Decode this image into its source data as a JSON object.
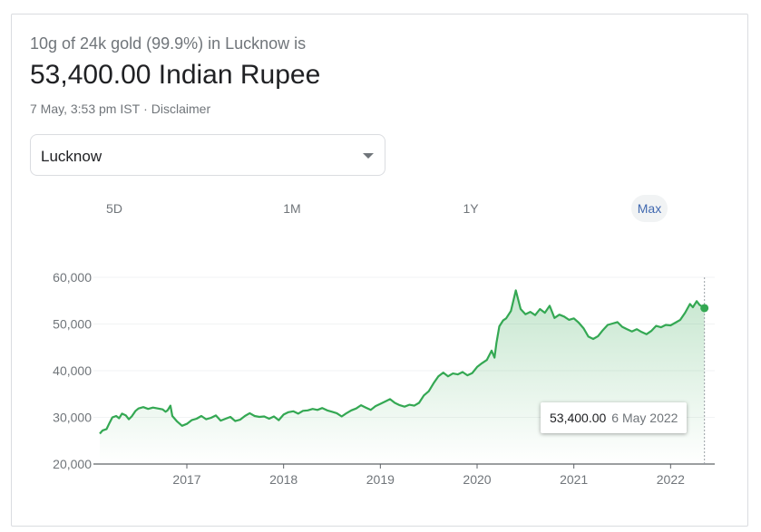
{
  "header": {
    "subtitle": "10g of 24k gold (99.9%) in Lucknow is",
    "price": "53,400.00 Indian Rupee",
    "timestamp": "7 May, 3:53 pm IST",
    "separator": "·",
    "disclaimer": "Disclaimer"
  },
  "city_select": {
    "value": "Lucknow",
    "icon": "chevron-down-icon"
  },
  "ranges": [
    {
      "label": "5D",
      "active": false
    },
    {
      "label": "1M",
      "active": false
    },
    {
      "label": "1Y",
      "active": false
    },
    {
      "label": "Max",
      "active": true
    }
  ],
  "tooltip": {
    "value": "53,400.00",
    "date": "6 May 2022"
  },
  "colors": {
    "line": "#34a853",
    "fill": "#34a853",
    "accent": "#4169b0",
    "grid": "#f1f3f4"
  },
  "chart_data": {
    "type": "area",
    "ylim": [
      20000,
      60000
    ],
    "y_ticks": [
      {
        "value": 60000,
        "label": "60,000"
      },
      {
        "value": 50000,
        "label": "50,000"
      },
      {
        "value": 40000,
        "label": "40,000"
      },
      {
        "value": 30000,
        "label": "30,000"
      },
      {
        "value": 20000,
        "label": "20,000"
      }
    ],
    "x_ticks": [
      {
        "value": 2017,
        "label": "2017"
      },
      {
        "value": 2018,
        "label": "2018"
      },
      {
        "value": 2019,
        "label": "2019"
      },
      {
        "value": 2020,
        "label": "2020"
      },
      {
        "value": 2021,
        "label": "2021"
      },
      {
        "value": 2022,
        "label": "2022"
      }
    ],
    "xlim": [
      2016.1,
      2022.4
    ],
    "series": [
      {
        "points": [
          [
            2016.1,
            26500
          ],
          [
            2016.13,
            27200
          ],
          [
            2016.17,
            27500
          ],
          [
            2016.2,
            28800
          ],
          [
            2016.23,
            30000
          ],
          [
            2016.27,
            30300
          ],
          [
            2016.3,
            29800
          ],
          [
            2016.33,
            30800
          ],
          [
            2016.37,
            30400
          ],
          [
            2016.4,
            29600
          ],
          [
            2016.43,
            30200
          ],
          [
            2016.47,
            31400
          ],
          [
            2016.5,
            31900
          ],
          [
            2016.55,
            32200
          ],
          [
            2016.6,
            31800
          ],
          [
            2016.65,
            32100
          ],
          [
            2016.7,
            31900
          ],
          [
            2016.75,
            31700
          ],
          [
            2016.78,
            31200
          ],
          [
            2016.8,
            31500
          ],
          [
            2016.83,
            32500
          ],
          [
            2016.85,
            30300
          ],
          [
            2016.9,
            29100
          ],
          [
            2016.95,
            28200
          ],
          [
            2017.0,
            28600
          ],
          [
            2017.05,
            29400
          ],
          [
            2017.1,
            29700
          ],
          [
            2017.15,
            30300
          ],
          [
            2017.2,
            29600
          ],
          [
            2017.25,
            29900
          ],
          [
            2017.3,
            30400
          ],
          [
            2017.35,
            29300
          ],
          [
            2017.4,
            29700
          ],
          [
            2017.45,
            30100
          ],
          [
            2017.5,
            29200
          ],
          [
            2017.55,
            29500
          ],
          [
            2017.6,
            30300
          ],
          [
            2017.65,
            30900
          ],
          [
            2017.7,
            30300
          ],
          [
            2017.75,
            30100
          ],
          [
            2017.8,
            30200
          ],
          [
            2017.85,
            29700
          ],
          [
            2017.9,
            30200
          ],
          [
            2017.95,
            29400
          ],
          [
            2018.0,
            30600
          ],
          [
            2018.05,
            31100
          ],
          [
            2018.1,
            31300
          ],
          [
            2018.15,
            30800
          ],
          [
            2018.2,
            31400
          ],
          [
            2018.25,
            31500
          ],
          [
            2018.3,
            31800
          ],
          [
            2018.35,
            31600
          ],
          [
            2018.4,
            32000
          ],
          [
            2018.45,
            31500
          ],
          [
            2018.5,
            31200
          ],
          [
            2018.55,
            30900
          ],
          [
            2018.6,
            30200
          ],
          [
            2018.65,
            30900
          ],
          [
            2018.7,
            31500
          ],
          [
            2018.75,
            31900
          ],
          [
            2018.8,
            32600
          ],
          [
            2018.85,
            32100
          ],
          [
            2018.9,
            31600
          ],
          [
            2018.95,
            32400
          ],
          [
            2019.0,
            32900
          ],
          [
            2019.05,
            33400
          ],
          [
            2019.1,
            33900
          ],
          [
            2019.15,
            33100
          ],
          [
            2019.2,
            32600
          ],
          [
            2019.25,
            32300
          ],
          [
            2019.3,
            32700
          ],
          [
            2019.35,
            32500
          ],
          [
            2019.4,
            33100
          ],
          [
            2019.45,
            34700
          ],
          [
            2019.5,
            35600
          ],
          [
            2019.55,
            37300
          ],
          [
            2019.6,
            38800
          ],
          [
            2019.65,
            39600
          ],
          [
            2019.7,
            38800
          ],
          [
            2019.75,
            39400
          ],
          [
            2019.8,
            39200
          ],
          [
            2019.85,
            39700
          ],
          [
            2019.9,
            39000
          ],
          [
            2019.95,
            39500
          ],
          [
            2020.0,
            40800
          ],
          [
            2020.05,
            41600
          ],
          [
            2020.1,
            42300
          ],
          [
            2020.15,
            44300
          ],
          [
            2020.18,
            42800
          ],
          [
            2020.2,
            45900
          ],
          [
            2020.23,
            49500
          ],
          [
            2020.27,
            50800
          ],
          [
            2020.3,
            51200
          ],
          [
            2020.35,
            52800
          ],
          [
            2020.4,
            57200
          ],
          [
            2020.45,
            53200
          ],
          [
            2020.5,
            52100
          ],
          [
            2020.55,
            52600
          ],
          [
            2020.6,
            51900
          ],
          [
            2020.65,
            53200
          ],
          [
            2020.7,
            52400
          ],
          [
            2020.75,
            53900
          ],
          [
            2020.8,
            51300
          ],
          [
            2020.85,
            52000
          ],
          [
            2020.9,
            51600
          ],
          [
            2020.95,
            50900
          ],
          [
            2021.0,
            51200
          ],
          [
            2021.05,
            50300
          ],
          [
            2021.1,
            49100
          ],
          [
            2021.15,
            47300
          ],
          [
            2021.2,
            46800
          ],
          [
            2021.25,
            47400
          ],
          [
            2021.3,
            48700
          ],
          [
            2021.35,
            49800
          ],
          [
            2021.4,
            50100
          ],
          [
            2021.45,
            50400
          ],
          [
            2021.5,
            49400
          ],
          [
            2021.55,
            48900
          ],
          [
            2021.6,
            48400
          ],
          [
            2021.65,
            48900
          ],
          [
            2021.7,
            48300
          ],
          [
            2021.75,
            47800
          ],
          [
            2021.8,
            48500
          ],
          [
            2021.85,
            49600
          ],
          [
            2021.9,
            49300
          ],
          [
            2021.95,
            49800
          ],
          [
            2022.0,
            49700
          ],
          [
            2022.05,
            50300
          ],
          [
            2022.1,
            50900
          ],
          [
            2022.15,
            52400
          ],
          [
            2022.2,
            54300
          ],
          [
            2022.23,
            53600
          ],
          [
            2022.27,
            54900
          ],
          [
            2022.3,
            54100
          ],
          [
            2022.33,
            53700
          ],
          [
            2022.35,
            53400
          ]
        ]
      }
    ]
  }
}
